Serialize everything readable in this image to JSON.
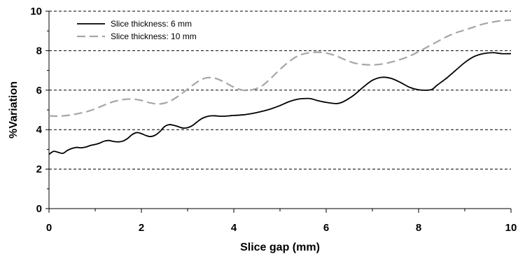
{
  "chart_data": {
    "type": "line",
    "title": "",
    "xlabel": "Slice gap (mm)",
    "ylabel": "%Variation",
    "xlim": [
      0,
      10
    ],
    "ylim": [
      0,
      10
    ],
    "x_ticks": [
      0,
      2,
      4,
      6,
      8,
      10
    ],
    "y_ticks": [
      0,
      2,
      4,
      6,
      8,
      10
    ],
    "grid": "horizontal dashed",
    "legend_position": "top-left",
    "series": [
      {
        "name": "Slice thickness: 6 mm",
        "color": "#000000",
        "style": "solid",
        "x": [
          0,
          0.1,
          0.2,
          0.3,
          0.4,
          0.5,
          0.6,
          0.7,
          0.8,
          0.9,
          1.0,
          1.1,
          1.2,
          1.3,
          1.4,
          1.5,
          1.6,
          1.7,
          1.8,
          1.9,
          2.0,
          2.1,
          2.2,
          2.3,
          2.4,
          2.5,
          2.6,
          2.7,
          2.8,
          2.9,
          3.0,
          3.1,
          3.2,
          3.3,
          3.4,
          3.5,
          3.6,
          3.7,
          3.8,
          3.9,
          4.0,
          4.2,
          4.4,
          4.6,
          4.8,
          5.0,
          5.2,
          5.4,
          5.6,
          5.7,
          5.8,
          6.0,
          6.2,
          6.3,
          6.4,
          6.6,
          6.8,
          7.0,
          7.2,
          7.4,
          7.6,
          7.8,
          8.0,
          8.2,
          8.3,
          8.4,
          8.6,
          8.8,
          9.0,
          9.2,
          9.4,
          9.6,
          9.8,
          10.0
        ],
        "y": [
          2.75,
          2.9,
          2.85,
          2.8,
          2.95,
          3.05,
          3.1,
          3.08,
          3.12,
          3.2,
          3.25,
          3.32,
          3.42,
          3.45,
          3.4,
          3.38,
          3.42,
          3.55,
          3.75,
          3.85,
          3.8,
          3.7,
          3.65,
          3.72,
          3.9,
          4.15,
          4.25,
          4.22,
          4.15,
          4.08,
          4.1,
          4.2,
          4.38,
          4.55,
          4.65,
          4.7,
          4.7,
          4.68,
          4.68,
          4.7,
          4.72,
          4.75,
          4.82,
          4.92,
          5.05,
          5.22,
          5.42,
          5.55,
          5.58,
          5.55,
          5.48,
          5.38,
          5.32,
          5.35,
          5.45,
          5.75,
          6.15,
          6.5,
          6.65,
          6.6,
          6.4,
          6.15,
          6.02,
          6.0,
          6.05,
          6.25,
          6.6,
          7.0,
          7.4,
          7.7,
          7.85,
          7.9,
          7.85,
          7.85
        ]
      },
      {
        "name": "Slice thickness: 10 mm",
        "color": "#a6a6a6",
        "style": "dashed",
        "x": [
          0,
          0.2,
          0.4,
          0.6,
          0.8,
          1.0,
          1.2,
          1.4,
          1.6,
          1.8,
          2.0,
          2.2,
          2.4,
          2.6,
          2.8,
          3.0,
          3.2,
          3.4,
          3.6,
          3.8,
          4.0,
          4.2,
          4.4,
          4.6,
          4.8,
          5.0,
          5.2,
          5.4,
          5.6,
          5.8,
          6.0,
          6.2,
          6.4,
          6.6,
          6.8,
          7.0,
          7.2,
          7.4,
          7.6,
          7.8,
          8.0,
          8.2,
          8.4,
          8.6,
          8.8,
          9.0,
          9.2,
          9.4,
          9.6,
          9.8,
          10.0
        ],
        "y": [
          4.7,
          4.68,
          4.72,
          4.8,
          4.9,
          5.05,
          5.25,
          5.42,
          5.52,
          5.55,
          5.48,
          5.35,
          5.3,
          5.42,
          5.7,
          6.05,
          6.4,
          6.62,
          6.6,
          6.4,
          6.15,
          6.0,
          6.02,
          6.2,
          6.6,
          7.05,
          7.45,
          7.75,
          7.88,
          7.92,
          7.88,
          7.75,
          7.55,
          7.38,
          7.3,
          7.28,
          7.32,
          7.42,
          7.55,
          7.72,
          7.95,
          8.2,
          8.45,
          8.7,
          8.9,
          9.05,
          9.2,
          9.35,
          9.45,
          9.52,
          9.55
        ]
      }
    ]
  }
}
